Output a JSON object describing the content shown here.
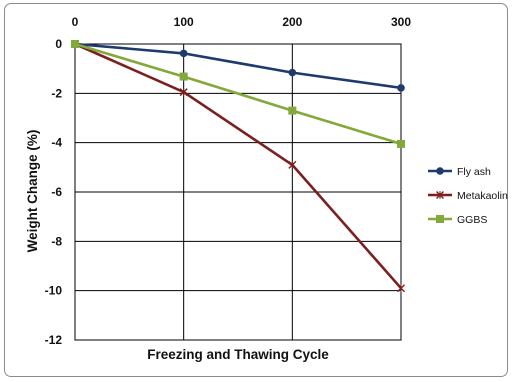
{
  "chart_data": {
    "type": "line",
    "title": "",
    "xlabel": "Freezing and Thawing Cycle",
    "ylabel": "Weight Change (%)",
    "x": [
      0,
      100,
      200,
      300
    ],
    "x_ticks": [
      0,
      100,
      200,
      300
    ],
    "y_ticks": [
      0,
      -2,
      -4,
      -6,
      -8,
      -10,
      -12
    ],
    "xlim": [
      0,
      300
    ],
    "ylim": [
      -12,
      0
    ],
    "x_axis_position": "top",
    "grid": "horizontal",
    "legend_position": "right",
    "series": [
      {
        "name": "Fly ash",
        "values": [
          0,
          -0.38,
          -1.16,
          -1.78
        ],
        "color": "#1f3a6e",
        "marker": "circle"
      },
      {
        "name": "Metakaolin",
        "values": [
          0,
          -1.95,
          -4.9,
          -9.9
        ],
        "color": "#7b1f1f",
        "marker": "x"
      },
      {
        "name": "GGBS",
        "values": [
          0,
          -1.32,
          -2.7,
          -4.05
        ],
        "color": "#82a93a",
        "marker": "square"
      }
    ]
  }
}
